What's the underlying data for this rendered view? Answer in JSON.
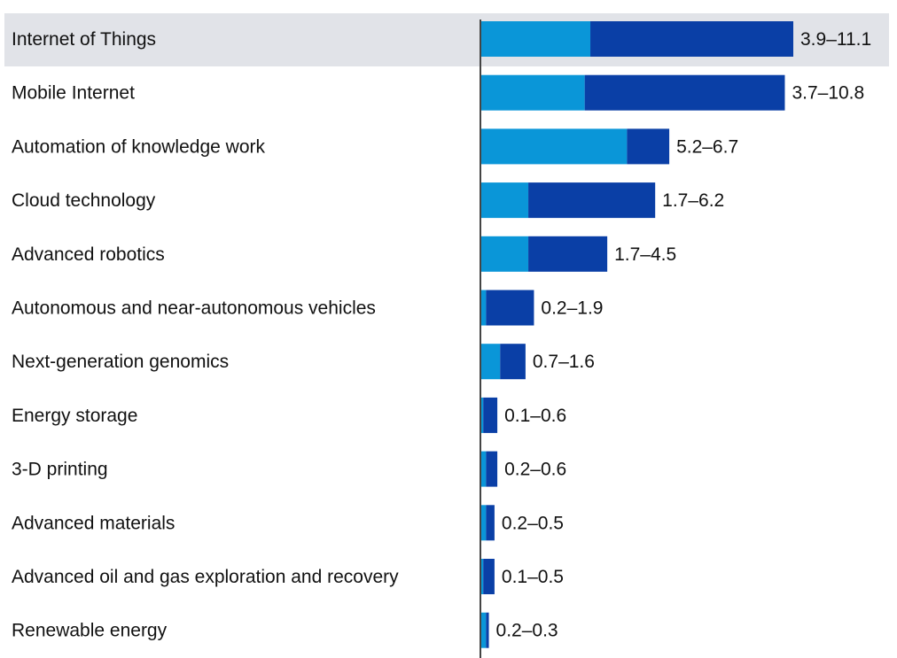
{
  "chart_data": {
    "type": "bar",
    "orientation": "horizontal",
    "stacked": true,
    "highlighted_category": "Internet of Things",
    "categories": [
      "Internet of Things",
      "Mobile Internet",
      "Automation of knowledge work",
      "Cloud technology",
      "Advanced robotics",
      "Autonomous and near-autonomous vehicles",
      "Next-generation genomics",
      "Energy storage",
      "3-D printing",
      "Advanced materials",
      "Advanced oil and gas exploration and recovery",
      "Renewable energy"
    ],
    "series": [
      {
        "values": [
          3.9,
          3.7,
          5.2,
          1.7,
          1.7,
          0.2,
          0.7,
          0.1,
          0.2,
          0.2,
          0.1,
          0.2
        ]
      },
      {
        "values": [
          7.2,
          7.1,
          1.5,
          4.5,
          2.8,
          1.7,
          0.9,
          0.5,
          0.4,
          0.3,
          0.4,
          0.1
        ]
      }
    ],
    "value_labels": [
      "3.9–11.1",
      "3.7–10.8",
      "5.2–6.7",
      "1.7–6.2",
      "1.7–4.5",
      "0.2–1.9",
      "0.7–1.6",
      "0.1–0.6",
      "0.2–0.6",
      "0.2–0.5",
      "0.1–0.5",
      "0.2–0.3"
    ],
    "xlim": [
      0,
      11.1
    ],
    "title": "",
    "xlabel": "",
    "ylabel": "",
    "grid": false,
    "colors": {
      "low": "#0a96d8",
      "high": "#0a3fa6",
      "highlight_band": "#e1e3e8",
      "axis": "#444444",
      "text": "#111111"
    }
  }
}
